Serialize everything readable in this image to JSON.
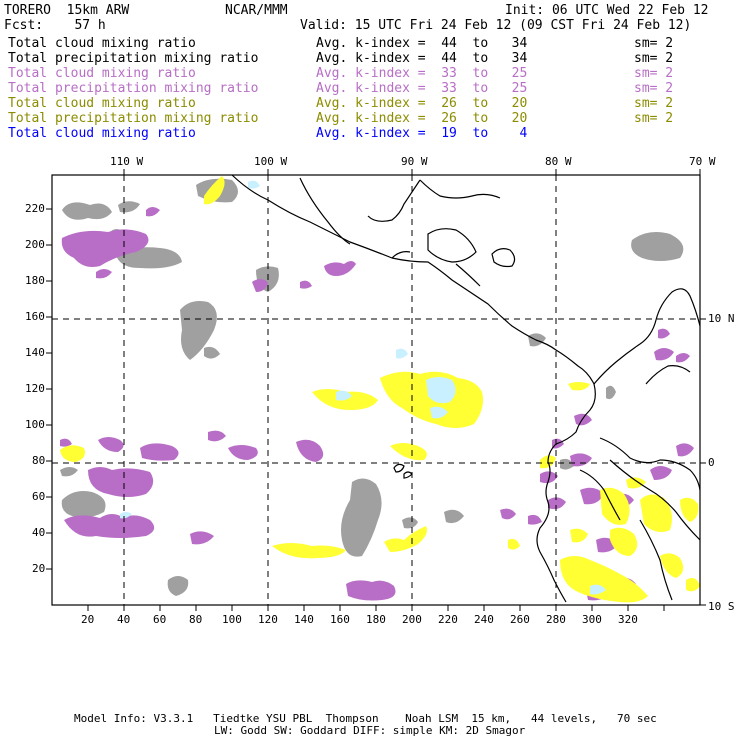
{
  "header": {
    "model": "TORERO  15km ARW",
    "org": "NCAR/MMM",
    "init": "Init: 06 UTC Wed 22 Feb 12",
    "fcst": "Fcst:    57 h",
    "valid": "Valid: 15 UTC Fri 24 Feb 12 (09 CST Fri 24 Feb 12)"
  },
  "legend": [
    {
      "field": "Total cloud mixing ratio",
      "kindex": "Avg. k-index =  44  to   34",
      "sm": "sm= 2",
      "color": "#000000"
    },
    {
      "field": "Total precipitation mixing ratio",
      "kindex": "Avg. k-index =  44  to   34",
      "sm": "sm= 2",
      "color": "#000000"
    },
    {
      "field": "Total cloud mixing ratio",
      "kindex": "Avg. k-index =  33  to   25",
      "sm": "sm= 2",
      "color": "#b86ec6"
    },
    {
      "field": "Total precipitation mixing ratio",
      "kindex": "Avg. k-index =  33  to   25",
      "sm": "sm= 2",
      "color": "#b86ec6"
    },
    {
      "field": "Total cloud mixing ratio",
      "kindex": "Avg. k-index =  26  to   20",
      "sm": "sm= 2",
      "color": "#8c8c00"
    },
    {
      "field": "Total precipitation mixing ratio",
      "kindex": "Avg. k-index =  26  to   20",
      "sm": "sm= 2",
      "color": "#8c8c00"
    },
    {
      "field": "Total cloud mixing ratio",
      "kindex": "Avg. k-index =  19  to    4",
      "sm": "",
      "color": "#0000ff"
    }
  ],
  "axes": {
    "x_ticks": [
      "20",
      "40",
      "60",
      "80",
      "100",
      "120",
      "140",
      "160",
      "180",
      "200",
      "220",
      "240",
      "260",
      "280",
      "300",
      "320"
    ],
    "y_ticks": [
      "20",
      "40",
      "60",
      "80",
      "100",
      "120",
      "140",
      "160",
      "180",
      "200",
      "220"
    ],
    "lon_labels": [
      "110 W",
      "100 W",
      "90 W",
      "80 W",
      "70 W"
    ],
    "lat_labels": [
      "10 N",
      "0",
      "10 S"
    ]
  },
  "footer": {
    "line1": "Model Info: V3.3.1   Tiedtke YSU PBL  Thompson    Noah LSM  15 km,   44 levels,   70 sec",
    "line2": "LW: Godd SW: Goddard DIFF: simple KM: 2D Smagor"
  },
  "colors": {
    "gray": "#a0a0a0",
    "purple": "#b86ec6",
    "yellow": "#ffff33",
    "cyan": "#c8f0ff"
  }
}
